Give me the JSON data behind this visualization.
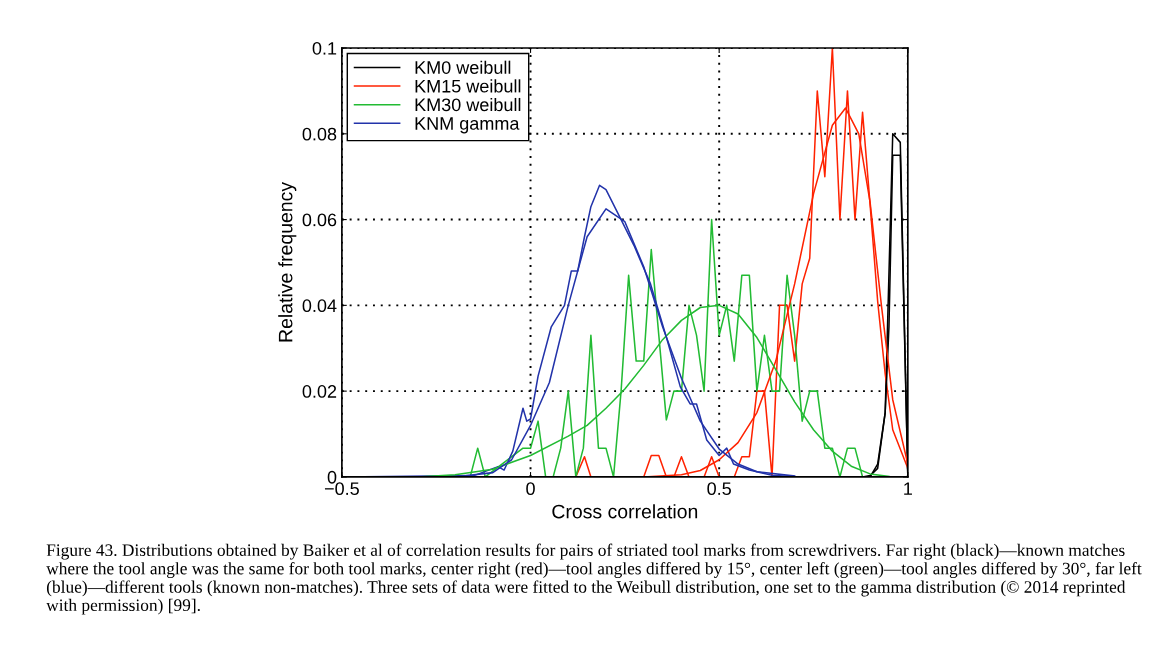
{
  "chart_data": {
    "type": "line",
    "xlabel": "Cross correlation",
    "ylabel": "Relative frequency",
    "xlim": [
      -0.5,
      1
    ],
    "ylim": [
      0,
      0.1
    ],
    "xticks": [
      {
        "value": -0.5,
        "label": "−0.5"
      },
      0,
      0.5,
      1
    ],
    "yticks": [
      0,
      0.02,
      0.04,
      0.06,
      0.08,
      0.1
    ],
    "grid": true,
    "legend": "top left",
    "line_style": "solid",
    "series": [
      {
        "name": "KM0 weibull",
        "color": "#000000",
        "x": [
          -0.5,
          0.9,
          0.92,
          0.94,
          0.96,
          0.98,
          1.0
        ],
        "values": [
          0,
          0,
          0.003,
          0.015,
          0.08,
          0.078,
          0
        ]
      },
      {
        "name": "KM15 weibull",
        "color": "#ff2200",
        "x": [
          -0.5,
          0.12,
          0.143,
          0.16,
          0.3,
          0.32,
          0.34,
          0.36,
          0.38,
          0.4,
          0.42,
          0.46,
          0.48,
          0.5,
          0.54,
          0.56,
          0.58,
          0.6,
          0.62,
          0.64,
          0.66,
          0.68,
          0.7,
          0.72,
          0.74,
          0.76,
          0.78,
          0.8,
          0.82,
          0.84,
          0.86,
          0.88,
          0.9,
          0.92,
          0.94,
          0.96,
          1.0
        ],
        "values": [
          0,
          0,
          0.0047,
          0,
          0,
          0.005,
          0.005,
          0,
          0,
          0.0047,
          0,
          0,
          0.0047,
          0,
          0,
          0.0047,
          0.0047,
          0.02,
          0.02,
          0,
          0.04,
          0.04,
          0.027,
          0.045,
          0.051,
          0.09,
          0.07,
          0.1,
          0.06,
          0.09,
          0.06,
          0.085,
          0.0635,
          0.041,
          0.024,
          0.011,
          0.002
        ]
      },
      {
        "name": "KM30 weibull",
        "color": "#22bb33",
        "x": [
          -0.5,
          -0.16,
          -0.14,
          -0.12,
          -0.02,
          0,
          0.02,
          0.04,
          0.06,
          0.08,
          0.1,
          0.12,
          0.14,
          0.16,
          0.18,
          0.2,
          0.22,
          0.24,
          0.26,
          0.28,
          0.3,
          0.32,
          0.34,
          0.36,
          0.38,
          0.4,
          0.42,
          0.44,
          0.46,
          0.48,
          0.5,
          0.52,
          0.54,
          0.56,
          0.58,
          0.6,
          0.62,
          0.64,
          0.66,
          0.68,
          0.7,
          0.72,
          0.74,
          0.76,
          0.78,
          0.8,
          0.82,
          0.84,
          0.86,
          0.88,
          1.0
        ],
        "values": [
          0,
          0,
          0.0067,
          0,
          0.0067,
          0.0067,
          0.013,
          0,
          0,
          0.0067,
          0.02,
          0,
          0.0067,
          0.033,
          0.0067,
          0.0067,
          0,
          0.02,
          0.047,
          0.027,
          0.027,
          0.053,
          0.033,
          0.0133,
          0.02,
          0.02,
          0.04,
          0.033,
          0.02,
          0.06,
          0.033,
          0.04,
          0.027,
          0.047,
          0.047,
          0.02,
          0.033,
          0.02,
          0.02,
          0.047,
          0.033,
          0.013,
          0.02,
          0.02,
          0.0067,
          0.0067,
          0,
          0.0067,
          0.0067,
          0,
          0
        ]
      },
      {
        "name": "KNM gamma",
        "color": "#2233aa",
        "x": [
          -0.5,
          -0.15,
          -0.086,
          -0.07,
          -0.047,
          -0.02,
          -0.01,
          0,
          0.02,
          0.055,
          0.09,
          0.108,
          0.125,
          0.143,
          0.16,
          0.183,
          0.2,
          0.24,
          0.274,
          0.318,
          0.362,
          0.397,
          0.423,
          0.44,
          0.467,
          0.5,
          0.52,
          0.538,
          0.58,
          0.64,
          0.71,
          1.0
        ],
        "values": [
          0,
          0.0003,
          0.0024,
          0.0016,
          0.006,
          0.016,
          0.013,
          0.0135,
          0.0235,
          0.035,
          0.04,
          0.048,
          0.048,
          0.056,
          0.063,
          0.068,
          0.067,
          0.06,
          0.054,
          0.045,
          0.032,
          0.021,
          0.017,
          0.017,
          0.0086,
          0.005,
          0.0067,
          0.003,
          0.0016,
          0.0004,
          0,
          0
        ]
      },
      {
        "color": "#000000",
        "x": [
          -0.5,
          0.88,
          0.9,
          0.92,
          0.94,
          0.95,
          0.96,
          0.98,
          1.0
        ],
        "values": [
          0,
          0,
          0.0003,
          0.002,
          0.015,
          0.035,
          0.075,
          0.075,
          0
        ]
      },
      {
        "color": "#ff2200",
        "x": [
          -0.5,
          0.3,
          0.4,
          0.45,
          0.5,
          0.55,
          0.6,
          0.65,
          0.7,
          0.75,
          0.8,
          0.835,
          0.87,
          0.9,
          0.93,
          0.96,
          1.0
        ],
        "values": [
          0,
          0,
          0.0005,
          0.0015,
          0.004,
          0.008,
          0.015,
          0.027,
          0.045,
          0.066,
          0.082,
          0.086,
          0.08,
          0.064,
          0.04,
          0.018,
          0.003
        ]
      },
      {
        "color": "#22bb33",
        "x": [
          -0.5,
          -0.3,
          -0.2,
          -0.1,
          0,
          0.1,
          0.15,
          0.2,
          0.25,
          0.3,
          0.35,
          0.4,
          0.45,
          0.5,
          0.55,
          0.6,
          0.65,
          0.7,
          0.75,
          0.8,
          0.85,
          0.9,
          0.95
        ],
        "values": [
          0,
          0,
          0.0005,
          0.0018,
          0.005,
          0.0095,
          0.012,
          0.016,
          0.0205,
          0.026,
          0.032,
          0.0365,
          0.0395,
          0.04,
          0.038,
          0.0325,
          0.025,
          0.0175,
          0.011,
          0.006,
          0.0025,
          0.0007,
          0.0001
        ]
      },
      {
        "color": "#2233aa",
        "x": [
          -0.5,
          -0.2,
          -0.1,
          -0.05,
          0,
          0.05,
          0.1,
          0.15,
          0.2,
          0.25,
          0.3,
          0.35,
          0.4,
          0.45,
          0.5,
          0.55,
          0.6,
          0.7
        ],
        "values": [
          0,
          0,
          0.001,
          0.004,
          0.012,
          0.022,
          0.04,
          0.056,
          0.0625,
          0.0595,
          0.049,
          0.035,
          0.023,
          0.013,
          0.0065,
          0.003,
          0.0012,
          0.0002
        ]
      }
    ],
    "annotations": [
      "Figure 43. Distributions obtained by Baiker et al of correlation results for pairs of striated tool marks from screwdrivers. Far right (black)—known matches where the tool angle was the same for both tool marks, center right (red)—tool angles differed by 15°, center left (green)—tool angles differed by 30°, far left (blue)—different tools (known non-matches). Three sets of data were fitted to the Weibull distribution, one set to the gamma distribution (© 2014 reprinted with permission) [99]."
    ]
  }
}
